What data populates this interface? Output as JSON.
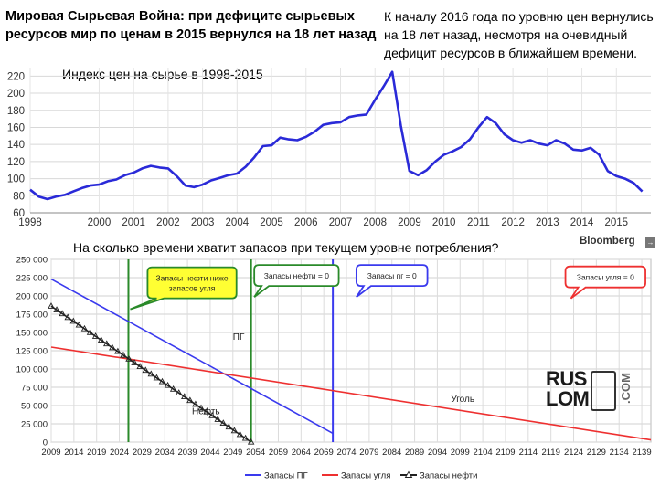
{
  "headline": "Мировая Сырьевая Война: при дефиците сырьевых ресурсов мир по ценам в 2015 вернулся на 18 лет назад",
  "note": "К началу 2016 года по уровню цен вернулись на 18 лет назад, несмотря на очевидный дефицит ресурсов в ближайшем времени.",
  "source": "Bloomberg",
  "source_mark": "→",
  "logo": {
    "line1": "RUS",
    "line2": "LOM",
    "com": ".COM"
  },
  "chart_data": [
    {
      "type": "line",
      "title": "Индекс цен на сырье в 1998-2015",
      "ylim": [
        60,
        230
      ],
      "xlim": [
        1998,
        2016
      ],
      "yticks": [
        "60",
        "80",
        "100",
        "120",
        "140",
        "160",
        "180",
        "200",
        "220"
      ],
      "xticks": [
        "1998",
        "2000",
        "2001",
        "2002",
        "2003",
        "2004",
        "2005",
        "2006",
        "2007",
        "2008",
        "2009",
        "2010",
        "2011",
        "2012",
        "2013",
        "2014",
        "2015"
      ],
      "grid": true,
      "color": "#2a2ad8",
      "x": [
        1998.0,
        1998.25,
        1998.5,
        1998.75,
        1999.0,
        1999.25,
        1999.5,
        1999.75,
        2000.0,
        2000.25,
        2000.5,
        2000.75,
        2001.0,
        2001.25,
        2001.5,
        2001.75,
        2002.0,
        2002.25,
        2002.5,
        2002.75,
        2003.0,
        2003.25,
        2003.5,
        2003.75,
        2004.0,
        2004.25,
        2004.5,
        2004.75,
        2005.0,
        2005.25,
        2005.5,
        2005.75,
        2006.0,
        2006.25,
        2006.5,
        2006.75,
        2007.0,
        2007.25,
        2007.5,
        2007.75,
        2008.0,
        2008.25,
        2008.5,
        2008.75,
        2009.0,
        2009.25,
        2009.5,
        2009.75,
        2010.0,
        2010.25,
        2010.5,
        2010.75,
        2011.0,
        2011.25,
        2011.5,
        2011.75,
        2012.0,
        2012.25,
        2012.5,
        2012.75,
        2013.0,
        2013.25,
        2013.5,
        2013.75,
        2014.0,
        2014.25,
        2014.5,
        2014.75,
        2015.0,
        2015.25,
        2015.5,
        2015.75
      ],
      "y": [
        87,
        79,
        76,
        79,
        81,
        85,
        89,
        92,
        93,
        97,
        99,
        104,
        107,
        112,
        115,
        113,
        112,
        103,
        92,
        90,
        93,
        98,
        101,
        104,
        106,
        114,
        125,
        138,
        139,
        148,
        146,
        145,
        149,
        155,
        163,
        165,
        166,
        172,
        174,
        175,
        192,
        208,
        225,
        162,
        109,
        104,
        110,
        120,
        128,
        132,
        137,
        146,
        160,
        172,
        165,
        152,
        145,
        142,
        145,
        141,
        139,
        145,
        141,
        134,
        133,
        136,
        128,
        109,
        103,
        100,
        95,
        85
      ]
    },
    {
      "type": "line",
      "title": "На сколько времени хватит запасов при текущем уровне потребления?",
      "ylim": [
        0,
        250000
      ],
      "xlim": [
        2009,
        2141
      ],
      "yticks": [
        "0",
        "25 000",
        "50 000",
        "75 000",
        "100 000",
        "125 000",
        "150 000",
        "175 000",
        "200 000",
        "225 000",
        "250 000"
      ],
      "xticks": [
        "2009",
        "2014",
        "2019",
        "2024",
        "2029",
        "2034",
        "2039",
        "2044",
        "2049",
        "2054",
        "2059",
        "2064",
        "2069",
        "2074",
        "2079",
        "2084",
        "2089",
        "2094",
        "2099",
        "2104",
        "2109",
        "2114",
        "2119",
        "2124",
        "2129",
        "2134",
        "2139"
      ],
      "grid": true,
      "series": [
        {
          "name": "Запасы ПГ",
          "color": "#3a3aee",
          "x": [
            2009,
            2071
          ],
          "values": [
            223000,
            12000
          ]
        },
        {
          "name": "Запасы угля",
          "color": "#ee3030",
          "x": [
            2009,
            2141
          ],
          "values": [
            130000,
            3000
          ]
        },
        {
          "name": "Запасы нефти",
          "color": "#222222",
          "x": [
            2009,
            2053
          ],
          "values": [
            186000,
            0
          ]
        }
      ],
      "series_labels": [
        {
          "text": "ПГ",
          "x": 2049,
          "y": 140000
        },
        {
          "text": "Нефть",
          "x": 2040,
          "y": 38000
        },
        {
          "text": "Уголь",
          "x": 2097,
          "y": 55000
        }
      ],
      "vlines": [
        {
          "x": 2026,
          "color": "#2a8a2a"
        },
        {
          "x": 2053,
          "color": "#2a8a2a"
        },
        {
          "x": 2071,
          "color": "#3a3aee"
        }
      ],
      "callouts": [
        {
          "text": "Запасы нефти ниже запасов угля",
          "x": 2040,
          "y": 218000,
          "border": "#2a8a2a",
          "fill": "#ffff33"
        },
        {
          "text": "Запасы нефти = 0",
          "x": 2063,
          "y": 228000,
          "border": "#2a8a2a",
          "fill": "#ffffff"
        },
        {
          "text": "Запасы пг = 0",
          "x": 2084,
          "y": 228000,
          "border": "#3a3aee",
          "fill": "#ffffff"
        },
        {
          "text": "Запасы угля = 0",
          "x": 2131,
          "y": 226000,
          "border": "#ee3030",
          "fill": "#ffffff"
        }
      ]
    }
  ]
}
